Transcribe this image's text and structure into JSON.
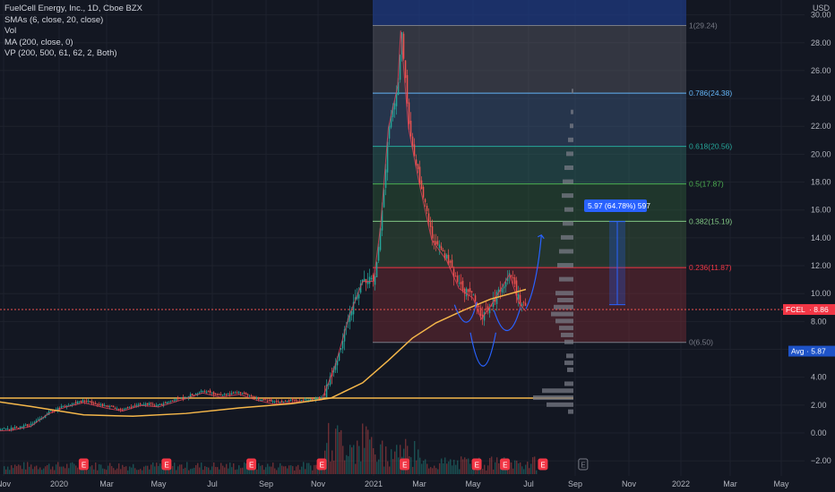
{
  "legend": {
    "title": "FuelCell Energy, Inc., 1D, Cboe BZX",
    "line2": "SMAs (6, close, 20, close)",
    "line3": "Vol",
    "line4": "MA (200, close, 0)",
    "line5": "VP (200, 500, 61, 62, 2, Both)"
  },
  "chart_data": {
    "type": "candlestick",
    "ticker": "FCEL",
    "currency": "USD",
    "ylim": [
      -2,
      30
    ],
    "yticks": [
      -2,
      0,
      2,
      4,
      6,
      8,
      10,
      12,
      14,
      16,
      18,
      20,
      22,
      24,
      26,
      28,
      30
    ],
    "ytick_labels": [
      "−2.00",
      "0.00",
      "2.00",
      "4.00",
      "6.00",
      "8.00",
      "10.00",
      "12.00",
      "14.00",
      "16.00",
      "18.00",
      "20.00",
      "22.00",
      "24.00",
      "26.00",
      "28.00",
      "30.00"
    ],
    "xtick_labels": [
      "Nov",
      "2020",
      "Mar",
      "May",
      "Jul",
      "Sep",
      "Nov",
      "2021",
      "Mar",
      "May",
      "Jul",
      "Sep",
      "Nov",
      "2022",
      "Mar",
      "May"
    ],
    "last_price_label": "FCEL",
    "last_price": 8.86,
    "last_price_text": "8.86",
    "avg_label": "Avg",
    "avg_value": 5.87,
    "avg_text": "5.87",
    "fib_levels": [
      {
        "ratio": 1,
        "price": 29.24,
        "label": "1(29.24)",
        "color": "#787b86"
      },
      {
        "ratio": 0.786,
        "price": 24.38,
        "label": "0.786(24.38)",
        "color": "#64b5f6"
      },
      {
        "ratio": 0.618,
        "price": 20.56,
        "label": "0.618(20.56)",
        "color": "#26a69a"
      },
      {
        "ratio": 0.5,
        "price": 17.87,
        "label": "0.5(17.87)",
        "color": "#4caf50"
      },
      {
        "ratio": 0.382,
        "price": 15.19,
        "label": "0.382(15.19)",
        "color": "#81c784"
      },
      {
        "ratio": 0.236,
        "price": 11.87,
        "label": "0.236(11.87)",
        "color": "#f23645"
      },
      {
        "ratio": 0,
        "price": 6.5,
        "label": "0(6.50)",
        "color": "#787b86"
      }
    ],
    "measure_label": "5.97 (64.78%) 597",
    "measure_from": 9.2,
    "measure_to": 15.17,
    "ma200_price_line": 2.5,
    "earnings_marker": "E",
    "close_path": [
      [
        "2019-10-20",
        0.25
      ],
      [
        "2019-11-10",
        0.32
      ],
      [
        "2019-12-01",
        0.6
      ],
      [
        "2019-12-20",
        1.5
      ],
      [
        "2020-01-10",
        2.0
      ],
      [
        "2020-02-01",
        2.3
      ],
      [
        "2020-03-01",
        1.9
      ],
      [
        "2020-03-20",
        1.7
      ],
      [
        "2020-04-10",
        2.1
      ],
      [
        "2020-05-01",
        2.0
      ],
      [
        "2020-06-01",
        2.6
      ],
      [
        "2020-06-20",
        3.0
      ],
      [
        "2020-07-10",
        2.7
      ],
      [
        "2020-08-01",
        2.9
      ],
      [
        "2020-08-20",
        2.5
      ],
      [
        "2020-09-10",
        2.2
      ],
      [
        "2020-10-01",
        2.3
      ],
      [
        "2020-10-20",
        2.4
      ],
      [
        "2020-11-05",
        2.5
      ],
      [
        "2020-11-20",
        5.0
      ],
      [
        "2020-12-05",
        8.5
      ],
      [
        "2020-12-20",
        11.0
      ],
      [
        "2021-01-01",
        11.0
      ],
      [
        "2021-01-10",
        15.0
      ],
      [
        "2021-01-20",
        22.0
      ],
      [
        "2021-02-01",
        25.0
      ],
      [
        "2021-02-05",
        29.0
      ],
      [
        "2021-02-15",
        22.0
      ],
      [
        "2021-03-01",
        18.0
      ],
      [
        "2021-03-15",
        14.0
      ],
      [
        "2021-04-01",
        12.5
      ],
      [
        "2021-04-15",
        10.5
      ],
      [
        "2021-05-01",
        9.8
      ],
      [
        "2021-05-10",
        8.3
      ],
      [
        "2021-05-20",
        9.2
      ],
      [
        "2021-06-01",
        10.5
      ],
      [
        "2021-06-10",
        11.5
      ],
      [
        "2021-06-20",
        9.5
      ],
      [
        "2021-06-28",
        8.86
      ]
    ]
  }
}
